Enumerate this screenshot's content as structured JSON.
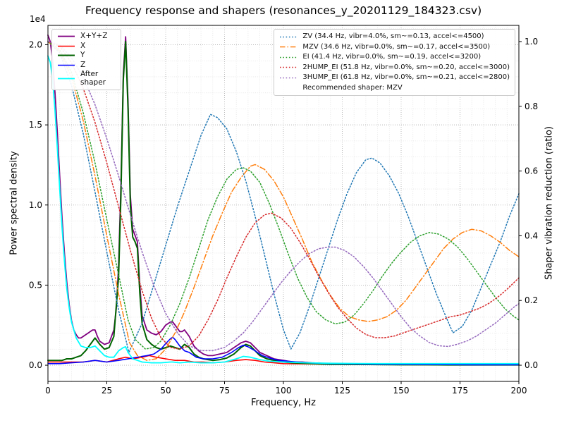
{
  "chart_data": {
    "type": "line",
    "title": "Frequency response and shapers (resonances_y_20201129_184323.csv)",
    "x_axis": {
      "label": "Frequency, Hz",
      "min": 0,
      "max": 200,
      "minor_step": 5,
      "ticks": [
        {
          "v": 0,
          "label": "0"
        },
        {
          "v": 25,
          "label": "25"
        },
        {
          "v": 50,
          "label": "50"
        },
        {
          "v": 75,
          "label": "75"
        },
        {
          "v": 100,
          "label": "100"
        },
        {
          "v": 125,
          "label": "125"
        },
        {
          "v": 150,
          "label": "150"
        },
        {
          "v": 175,
          "label": "175"
        },
        {
          "v": 200,
          "label": "200"
        }
      ]
    },
    "y_left": {
      "label": "Power spectral density",
      "offset_text": "1e4",
      "lim": [
        -0.101,
        2.121
      ],
      "ticks": [
        {
          "v": 0,
          "label": "0.0"
        },
        {
          "v": 0.5,
          "label": "0.5"
        },
        {
          "v": 1.0,
          "label": "1.0"
        },
        {
          "v": 1.5,
          "label": "1.5"
        },
        {
          "v": 2.0,
          "label": "2.0"
        }
      ]
    },
    "y_right": {
      "label": "Shaper vibration reduction (ratio)",
      "lim": [
        -0.05,
        1.05
      ],
      "ticks": [
        {
          "v": 0,
          "label": "0.0"
        },
        {
          "v": 0.2,
          "label": "0.2"
        },
        {
          "v": 0.4,
          "label": "0.4"
        },
        {
          "v": 0.6,
          "label": "0.6"
        },
        {
          "v": 0.8,
          "label": "0.8"
        },
        {
          "v": 1.0,
          "label": "1.0"
        }
      ]
    },
    "grid": {
      "major": "#b5b5b5",
      "minor": "#e4e4e4"
    },
    "recommended": "Recommended shaper: MZV",
    "series": [
      {
        "name": "x-y-z",
        "label": "X+Y+Z",
        "color": "#800080",
        "style": "solid",
        "axis": "left",
        "lw": 1.8,
        "x": [
          0,
          1,
          2,
          3,
          4,
          5,
          6,
          7,
          8,
          9,
          10,
          11,
          12,
          13,
          14,
          15,
          16,
          17,
          18,
          19,
          20,
          21,
          22,
          24,
          26,
          28,
          29,
          30,
          31,
          32,
          33,
          34,
          35,
          36,
          37,
          38,
          39,
          40,
          42,
          44,
          46,
          48,
          50,
          51,
          52,
          53,
          54,
          55,
          56,
          57,
          58,
          60,
          62,
          64,
          66,
          68,
          70,
          73,
          76,
          79,
          82,
          84,
          86,
          88,
          90,
          93,
          96,
          100,
          104,
          108,
          112,
          116,
          120,
          130,
          140,
          150,
          160,
          170,
          180,
          190,
          200
        ],
        "y": [
          2.06,
          2.02,
          1.9,
          1.7,
          1.45,
          1.18,
          0.92,
          0.7,
          0.52,
          0.38,
          0.28,
          0.22,
          0.19,
          0.17,
          0.17,
          0.18,
          0.19,
          0.2,
          0.21,
          0.22,
          0.22,
          0.18,
          0.15,
          0.13,
          0.14,
          0.22,
          0.35,
          0.62,
          1.12,
          1.82,
          2.05,
          1.65,
          1.06,
          0.85,
          0.81,
          0.77,
          0.5,
          0.31,
          0.22,
          0.2,
          0.19,
          0.21,
          0.25,
          0.26,
          0.27,
          0.27,
          0.25,
          0.23,
          0.21,
          0.21,
          0.22,
          0.18,
          0.12,
          0.09,
          0.07,
          0.06,
          0.06,
          0.07,
          0.08,
          0.11,
          0.14,
          0.15,
          0.14,
          0.11,
          0.08,
          0.06,
          0.04,
          0.03,
          0.02,
          0.02,
          0.015,
          0.012,
          0.01,
          0.008,
          0.006,
          0.005,
          0.004,
          0.004,
          0.003,
          0.003,
          0.003
        ]
      },
      {
        "name": "x",
        "label": "X",
        "color": "#ff0000",
        "style": "solid",
        "axis": "left",
        "lw": 1.6,
        "x": [
          0,
          5,
          10,
          15,
          20,
          25,
          30,
          33,
          36,
          40,
          43,
          46,
          50,
          54,
          58,
          62,
          66,
          70,
          75,
          80,
          84,
          88,
          92,
          96,
          100,
          110,
          120,
          140,
          160,
          180,
          200
        ],
        "y": [
          0.02,
          0.02,
          0.02,
          0.02,
          0.03,
          0.02,
          0.04,
          0.05,
          0.04,
          0.05,
          0.06,
          0.05,
          0.04,
          0.03,
          0.03,
          0.02,
          0.02,
          0.015,
          0.02,
          0.03,
          0.035,
          0.03,
          0.02,
          0.015,
          0.01,
          0.008,
          0.006,
          0.004,
          0.003,
          0.003,
          0.002
        ]
      },
      {
        "name": "y",
        "label": "Y",
        "color": "#006400",
        "style": "solid",
        "axis": "left",
        "lw": 2,
        "x": [
          0,
          2,
          4,
          6,
          8,
          10,
          12,
          14,
          16,
          18,
          20,
          22,
          24,
          26,
          28,
          30,
          31,
          32,
          33,
          34,
          35,
          36,
          37,
          38,
          39,
          40,
          42,
          44,
          46,
          48,
          50,
          52,
          54,
          56,
          58,
          60,
          62,
          64,
          66,
          68,
          70,
          73,
          76,
          79,
          82,
          84,
          86,
          88,
          90,
          93,
          96,
          100,
          104,
          108,
          112,
          116,
          120,
          130,
          140,
          150,
          160,
          170,
          180,
          190,
          200
        ],
        "y": [
          0.03,
          0.03,
          0.03,
          0.03,
          0.04,
          0.04,
          0.05,
          0.06,
          0.09,
          0.13,
          0.17,
          0.13,
          0.1,
          0.11,
          0.18,
          0.55,
          1.05,
          1.78,
          2.02,
          1.6,
          1.0,
          0.8,
          0.77,
          0.73,
          0.45,
          0.26,
          0.16,
          0.13,
          0.11,
          0.1,
          0.11,
          0.12,
          0.11,
          0.1,
          0.13,
          0.11,
          0.07,
          0.05,
          0.04,
          0.035,
          0.03,
          0.035,
          0.045,
          0.07,
          0.11,
          0.13,
          0.12,
          0.09,
          0.06,
          0.04,
          0.03,
          0.02,
          0.015,
          0.012,
          0.01,
          0.008,
          0.006,
          0.005,
          0.004,
          0.003,
          0.003,
          0.002,
          0.002,
          0.002,
          0.002
        ]
      },
      {
        "name": "z",
        "label": "Z",
        "color": "#0000ff",
        "style": "solid",
        "axis": "left",
        "lw": 1.6,
        "x": [
          0,
          5,
          10,
          15,
          20,
          25,
          30,
          34,
          38,
          42,
          45,
          48,
          50,
          52,
          53,
          54,
          56,
          58,
          60,
          63,
          66,
          70,
          74,
          78,
          81,
          83,
          85,
          88,
          91,
          94,
          98,
          102,
          106,
          110,
          120,
          140,
          160,
          180,
          200
        ],
        "y": [
          0.01,
          0.01,
          0.015,
          0.02,
          0.03,
          0.02,
          0.03,
          0.04,
          0.05,
          0.06,
          0.07,
          0.1,
          0.135,
          0.165,
          0.175,
          0.16,
          0.12,
          0.09,
          0.08,
          0.05,
          0.04,
          0.04,
          0.05,
          0.08,
          0.11,
          0.125,
          0.115,
          0.09,
          0.06,
          0.045,
          0.03,
          0.025,
          0.02,
          0.015,
          0.01,
          0.006,
          0.004,
          0.003,
          0.003
        ]
      },
      {
        "name": "after-shaper",
        "label": "After shaper",
        "color": "#00ffff",
        "style": "solid",
        "axis": "left",
        "lw": 1.8,
        "x": [
          0,
          1,
          2,
          3,
          4,
          5,
          6,
          7,
          8,
          9,
          10,
          12,
          14,
          16,
          18,
          20,
          22,
          24,
          26,
          28,
          30,
          32,
          33,
          34,
          36,
          38,
          40,
          44,
          48,
          52,
          53,
          56,
          60,
          65,
          70,
          75,
          80,
          83,
          86,
          90,
          94,
          100,
          110,
          120,
          140,
          160,
          180,
          200
        ],
        "y": [
          1.93,
          1.89,
          1.78,
          1.59,
          1.35,
          1.1,
          0.86,
          0.65,
          0.48,
          0.36,
          0.27,
          0.17,
          0.12,
          0.11,
          0.11,
          0.12,
          0.09,
          0.06,
          0.05,
          0.05,
          0.09,
          0.11,
          0.115,
          0.08,
          0.04,
          0.03,
          0.02,
          0.015,
          0.015,
          0.02,
          0.02,
          0.015,
          0.02,
          0.015,
          0.015,
          0.02,
          0.04,
          0.055,
          0.05,
          0.035,
          0.025,
          0.02,
          0.015,
          0.012,
          0.01,
          0.01,
          0.01,
          0.01
        ]
      },
      {
        "name": "zv",
        "label": "ZV (34.4 Hz, vibr=4.0%, sm~=0.13, accel<=4500)",
        "color": "#1f77b4",
        "style": "dotted",
        "axis": "right",
        "lw": 1.5,
        "x": [
          0,
          5,
          10,
          15,
          20,
          25,
          30,
          34.4,
          40,
          45,
          50,
          55,
          60,
          65,
          69,
          72,
          76,
          80,
          84,
          88,
          92,
          96,
          100,
          103.2,
          107,
          111,
          115,
          119,
          123,
          127,
          131,
          135,
          137.6,
          141,
          145,
          149,
          153,
          157,
          161,
          165,
          169,
          172,
          176,
          180,
          184,
          188,
          192,
          196,
          200
        ],
        "y": [
          1.0,
          0.965,
          0.865,
          0.715,
          0.535,
          0.35,
          0.17,
          0.04,
          0.13,
          0.25,
          0.37,
          0.49,
          0.6,
          0.71,
          0.775,
          0.765,
          0.73,
          0.66,
          0.57,
          0.46,
          0.34,
          0.22,
          0.11,
          0.05,
          0.1,
          0.18,
          0.27,
          0.36,
          0.45,
          0.53,
          0.595,
          0.635,
          0.64,
          0.625,
          0.585,
          0.53,
          0.46,
          0.38,
          0.3,
          0.22,
          0.15,
          0.1,
          0.12,
          0.17,
          0.24,
          0.31,
          0.38,
          0.46,
          0.53
        ]
      },
      {
        "name": "mzv",
        "label": "MZV (34.6 Hz, vibr=0.0%, sm~=0.17, accel<=3500)",
        "color": "#ff7f0e",
        "style": "dashdot",
        "axis": "right",
        "lw": 1.5,
        "x": [
          0,
          5,
          10,
          15,
          20,
          25,
          30,
          34.6,
          38,
          42,
          46,
          50,
          54,
          58,
          62,
          66,
          70,
          74,
          78,
          82,
          86,
          88,
          92,
          96,
          100,
          104,
          108,
          112,
          116,
          120,
          124,
          128,
          132,
          136,
          140,
          144,
          148,
          152,
          156,
          160,
          164,
          168,
          172,
          176,
          180,
          184,
          188,
          192,
          196,
          200
        ],
        "y": [
          1.0,
          0.97,
          0.89,
          0.755,
          0.585,
          0.4,
          0.22,
          0.07,
          0.03,
          0.015,
          0.02,
          0.05,
          0.1,
          0.165,
          0.24,
          0.32,
          0.4,
          0.47,
          0.535,
          0.58,
          0.615,
          0.62,
          0.605,
          0.57,
          0.52,
          0.455,
          0.39,
          0.32,
          0.265,
          0.215,
          0.175,
          0.15,
          0.14,
          0.135,
          0.14,
          0.15,
          0.17,
          0.2,
          0.24,
          0.28,
          0.32,
          0.36,
          0.39,
          0.41,
          0.42,
          0.415,
          0.4,
          0.38,
          0.355,
          0.335
        ]
      },
      {
        "name": "ei",
        "label": "EI (41.4 Hz, vibr=0.0%, sm~=0.19, accel<=3200)",
        "color": "#2ca02c",
        "style": "dotted",
        "axis": "right",
        "lw": 1.5,
        "x": [
          0,
          5,
          10,
          15,
          20,
          25,
          30,
          34,
          37,
          41.4,
          45,
          48,
          52,
          56,
          60,
          64,
          68,
          72,
          76,
          80,
          83,
          86,
          90,
          94,
          98,
          102,
          106,
          110,
          114,
          118,
          122,
          126,
          130,
          134,
          138,
          142,
          146,
          150,
          154,
          158,
          162,
          166,
          170,
          174,
          178,
          182,
          186,
          190,
          194,
          198,
          200
        ],
        "y": [
          1.0,
          0.975,
          0.905,
          0.78,
          0.625,
          0.45,
          0.28,
          0.14,
          0.08,
          0.05,
          0.055,
          0.075,
          0.125,
          0.19,
          0.27,
          0.36,
          0.45,
          0.52,
          0.575,
          0.605,
          0.61,
          0.6,
          0.565,
          0.5,
          0.425,
          0.345,
          0.27,
          0.21,
          0.165,
          0.14,
          0.128,
          0.133,
          0.155,
          0.19,
          0.23,
          0.275,
          0.315,
          0.35,
          0.38,
          0.4,
          0.41,
          0.405,
          0.39,
          0.365,
          0.33,
          0.29,
          0.25,
          0.21,
          0.175,
          0.15,
          0.14
        ]
      },
      {
        "name": "2hump-ei",
        "label": "2HUMP_EI (51.8 Hz, vibr=0.0%, sm~=0.20, accel<=3000)",
        "color": "#d62728",
        "style": "dotted",
        "axis": "right",
        "lw": 1.5,
        "x": [
          0,
          5,
          10,
          15,
          20,
          25,
          30,
          35,
          40,
          44,
          48,
          52,
          56,
          60,
          64,
          68,
          72,
          76,
          80,
          84,
          88,
          92,
          95,
          99,
          103,
          107,
          111,
          115,
          119,
          123,
          127,
          131,
          135,
          139,
          143,
          147,
          151,
          155,
          159,
          163,
          167,
          171,
          175,
          179,
          183,
          187,
          191,
          195,
          200
        ],
        "y": [
          1.0,
          0.985,
          0.935,
          0.855,
          0.75,
          0.625,
          0.49,
          0.355,
          0.23,
          0.145,
          0.085,
          0.055,
          0.05,
          0.06,
          0.09,
          0.14,
          0.2,
          0.27,
          0.335,
          0.395,
          0.44,
          0.465,
          0.47,
          0.455,
          0.425,
          0.38,
          0.33,
          0.275,
          0.225,
          0.18,
          0.145,
          0.115,
          0.095,
          0.085,
          0.085,
          0.09,
          0.1,
          0.11,
          0.12,
          0.13,
          0.14,
          0.15,
          0.155,
          0.165,
          0.175,
          0.19,
          0.21,
          0.235,
          0.27
        ]
      },
      {
        "name": "3hump-ei",
        "label": "3HUMP_EI (61.8 Hz, vibr=0.0%, sm~=0.21, accel<=2800)",
        "color": "#9467bd",
        "style": "dotted",
        "axis": "right",
        "lw": 1.5,
        "x": [
          0,
          5,
          10,
          15,
          20,
          25,
          30,
          35,
          40,
          45,
          50,
          55,
          60,
          65,
          70,
          75,
          79,
          83,
          87,
          91,
          95,
          99,
          103,
          107,
          111,
          115,
          119,
          122,
          126,
          130,
          134,
          138,
          142,
          146,
          150,
          154,
          158,
          162,
          166,
          170,
          174,
          178,
          182,
          186,
          190,
          194,
          198,
          200
        ],
        "y": [
          1.0,
          0.99,
          0.95,
          0.89,
          0.805,
          0.7,
          0.585,
          0.465,
          0.35,
          0.245,
          0.16,
          0.1,
          0.06,
          0.045,
          0.045,
          0.055,
          0.075,
          0.1,
          0.135,
          0.175,
          0.215,
          0.255,
          0.29,
          0.32,
          0.345,
          0.36,
          0.365,
          0.365,
          0.355,
          0.335,
          0.305,
          0.27,
          0.23,
          0.19,
          0.15,
          0.115,
          0.09,
          0.07,
          0.06,
          0.058,
          0.065,
          0.075,
          0.09,
          0.11,
          0.13,
          0.155,
          0.18,
          0.19
        ]
      }
    ]
  }
}
